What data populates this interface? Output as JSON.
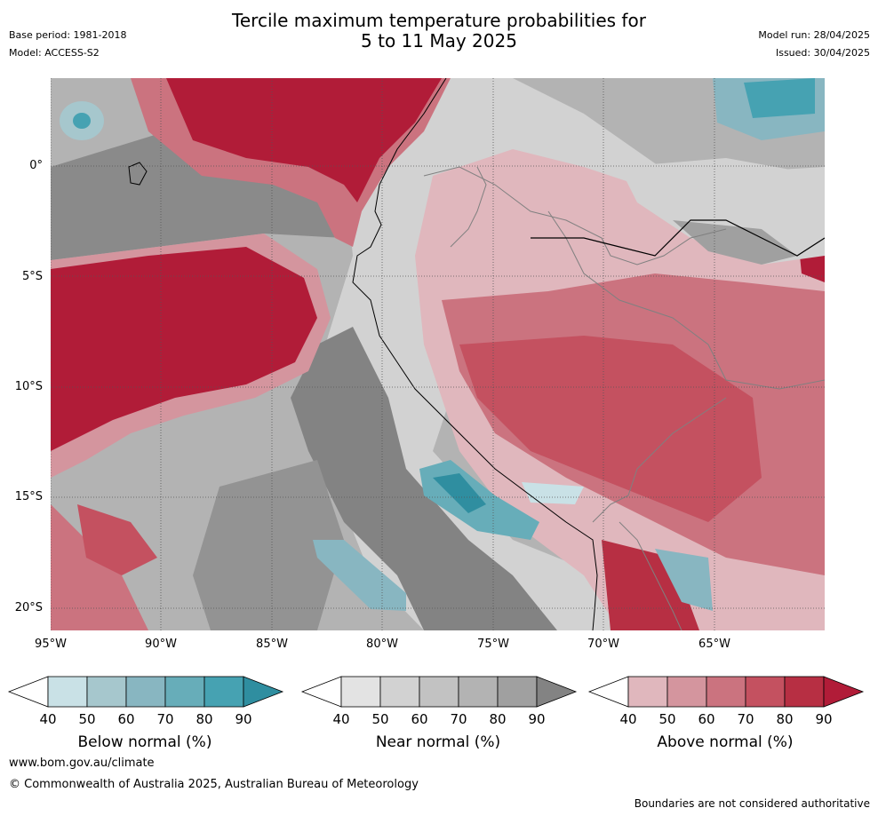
{
  "title": {
    "line1": "Tercile maximum temperature probabilities for",
    "line2": "5 to 11 May 2025"
  },
  "meta": {
    "base_period": "Base period: 1981-2018",
    "model": "Model: ACCESS-S2",
    "model_run": "Model run: 28/04/2025",
    "issued": "Issued: 30/04/2025"
  },
  "lat_labels": [
    "0°",
    "5°S",
    "10°S",
    "15°S",
    "20°S"
  ],
  "lon_labels": [
    "95°W",
    "90°W",
    "85°W",
    "80°W",
    "75°W",
    "70°W",
    "65°W"
  ],
  "colorbars": [
    {
      "title": "Below normal (%)",
      "ticks": [
        "40",
        "50",
        "60",
        "70",
        "80",
        "90"
      ],
      "colors": [
        "#ffffff",
        "#c9e1e6",
        "#a6c7cd",
        "#88b6c1",
        "#67adb9",
        "#46a2b2",
        "#2f8ea0"
      ]
    },
    {
      "title": "Near normal (%)",
      "ticks": [
        "40",
        "50",
        "60",
        "70",
        "80",
        "90"
      ],
      "colors": [
        "#ffffff",
        "#e3e3e3",
        "#d2d2d2",
        "#c2c2c2",
        "#b3b3b3",
        "#a0a0a0",
        "#838383"
      ]
    },
    {
      "title": "Above normal (%)",
      "ticks": [
        "40",
        "50",
        "60",
        "70",
        "80",
        "90"
      ],
      "colors": [
        "#ffffff",
        "#e0b7bd",
        "#d4959e",
        "#cb737f",
        "#c45160",
        "#b72f43",
        "#b11c38"
      ]
    }
  ],
  "footer": {
    "url": "www.bom.gov.au/climate",
    "copyright": "© Commonwealth of Australia 2025, Australian Bureau of Meteorology",
    "disclaimer": "Boundaries are not considered authoritative"
  }
}
